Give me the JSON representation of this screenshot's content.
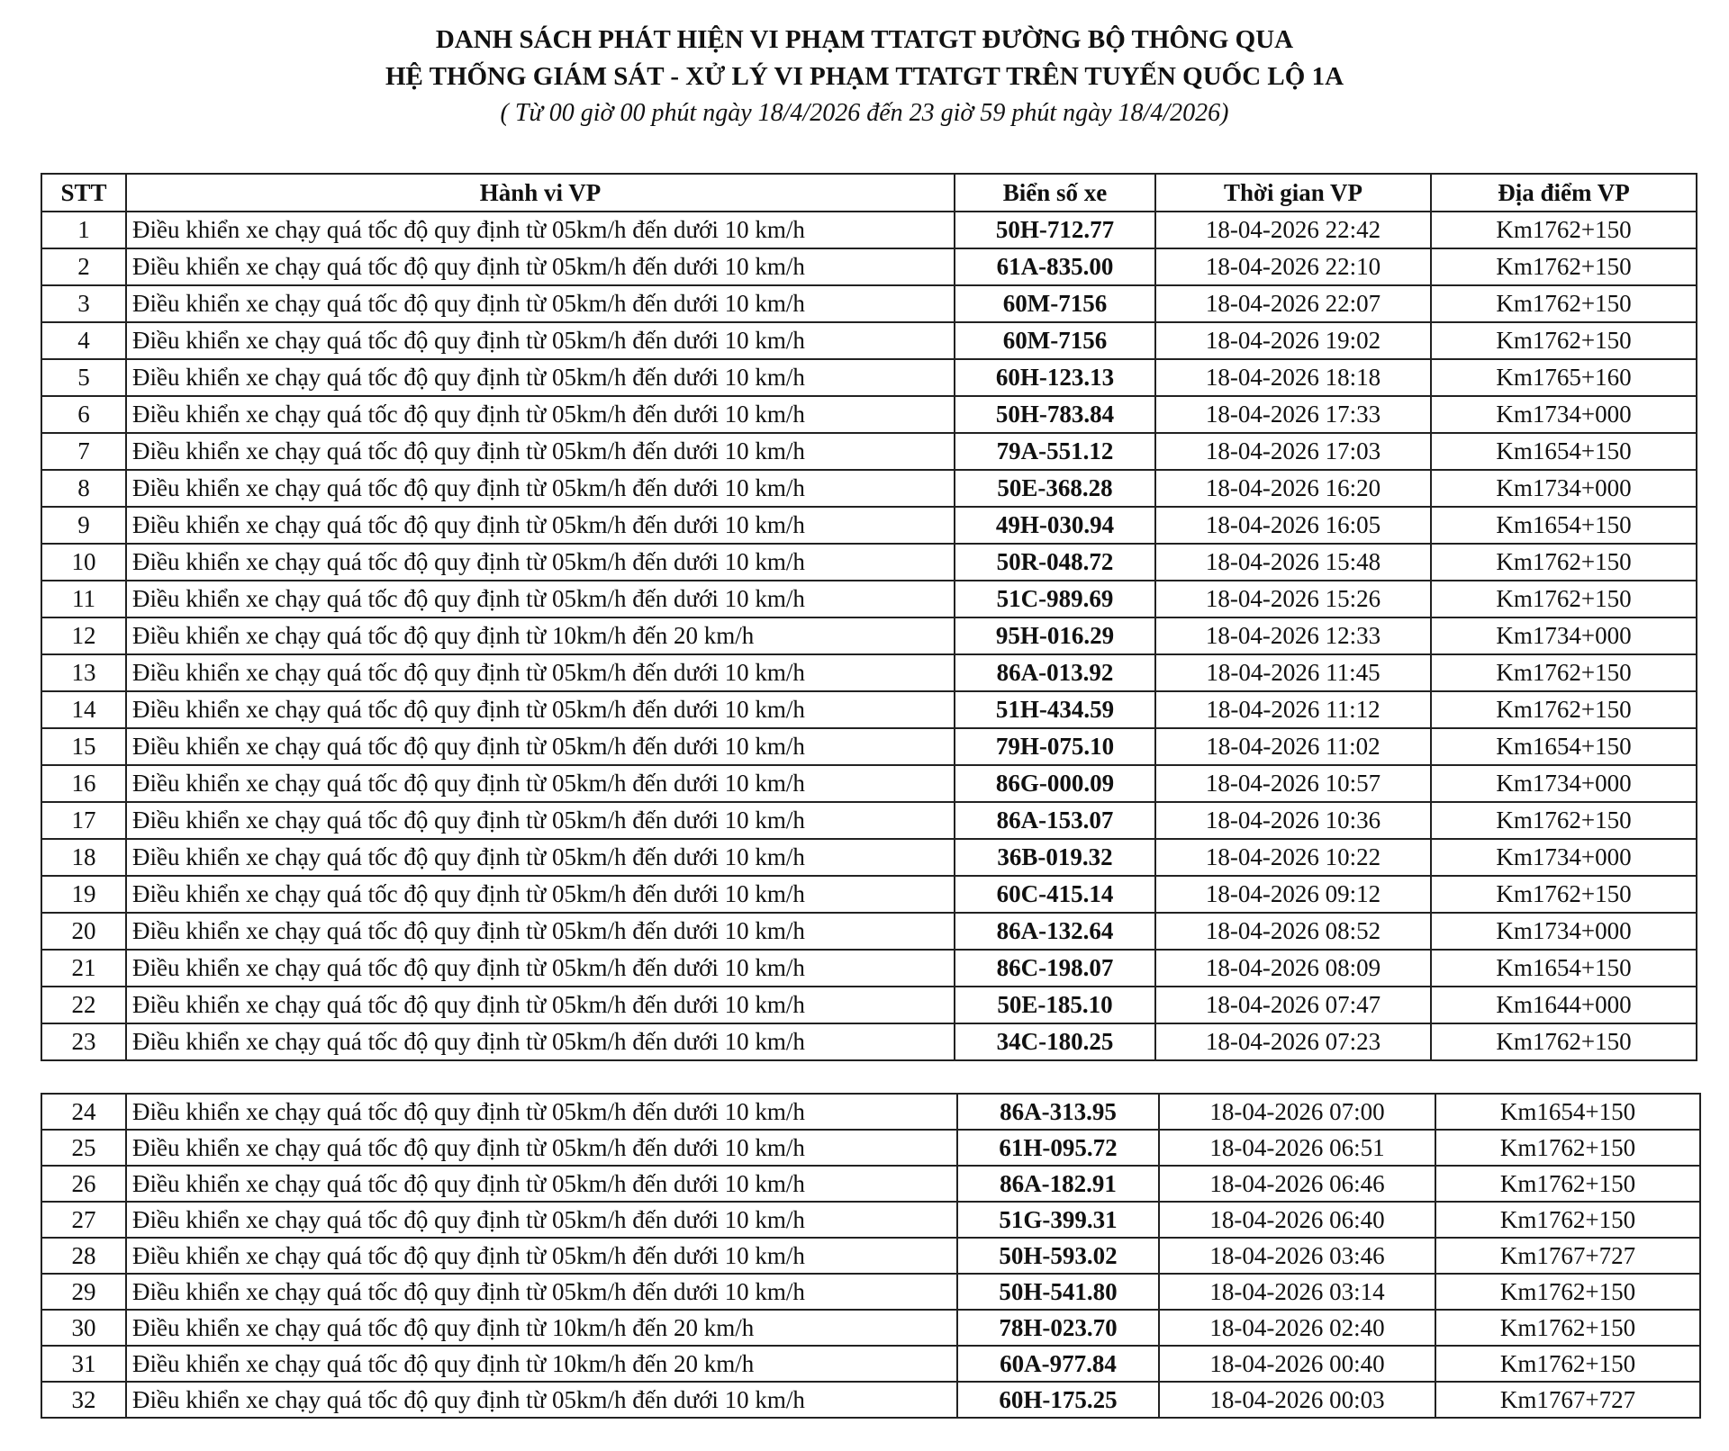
{
  "header": {
    "title_line1": "DANH SÁCH PHÁT HIỆN VI PHẠM TTATGT ĐƯỜNG BỘ THÔNG QUA",
    "title_line2": "HỆ THỐNG GIÁM SÁT - XỬ LÝ VI PHẠM TTATGT TRÊN TUYẾN QUỐC LỘ 1A",
    "subtitle": "( Từ 00 giờ 00 phút ngày 18/4/2026 đến 23 giờ 59 phút ngày 18/4/2026)"
  },
  "columns": [
    "STT",
    "Hành vi VP",
    "Biển số xe",
    "Thời gian VP",
    "Địa điểm VP"
  ],
  "rows": [
    [
      "1",
      "Điều khiển xe chạy quá tốc độ quy định từ 05km/h đến dưới 10 km/h",
      "50H-712.77",
      "18-04-2026 22:42",
      "Km1762+150"
    ],
    [
      "2",
      "Điều khiển xe chạy quá tốc độ quy định từ 05km/h đến dưới 10 km/h",
      "61A-835.00",
      "18-04-2026 22:10",
      "Km1762+150"
    ],
    [
      "3",
      "Điều khiển xe chạy quá tốc độ quy định từ 05km/h đến dưới 10 km/h",
      "60M-7156",
      "18-04-2026 22:07",
      "Km1762+150"
    ],
    [
      "4",
      "Điều khiển xe chạy quá tốc độ quy định từ 05km/h đến dưới 10 km/h",
      "60M-7156",
      "18-04-2026 19:02",
      "Km1762+150"
    ],
    [
      "5",
      "Điều khiển xe chạy quá tốc độ quy định từ 05km/h đến dưới 10 km/h",
      "60H-123.13",
      "18-04-2026 18:18",
      "Km1765+160"
    ],
    [
      "6",
      "Điều khiển xe chạy quá tốc độ quy định từ 05km/h đến dưới 10 km/h",
      "50H-783.84",
      "18-04-2026 17:33",
      "Km1734+000"
    ],
    [
      "7",
      "Điều khiển xe chạy quá tốc độ quy định từ 05km/h đến dưới 10 km/h",
      "79A-551.12",
      "18-04-2026 17:03",
      "Km1654+150"
    ],
    [
      "8",
      "Điều khiển xe chạy quá tốc độ quy định từ 05km/h đến dưới 10 km/h",
      "50E-368.28",
      "18-04-2026 16:20",
      "Km1734+000"
    ],
    [
      "9",
      "Điều khiển xe chạy quá tốc độ quy định từ 05km/h đến dưới 10 km/h",
      "49H-030.94",
      "18-04-2026 16:05",
      "Km1654+150"
    ],
    [
      "10",
      "Điều khiển xe chạy quá tốc độ quy định từ 05km/h đến dưới 10 km/h",
      "50R-048.72",
      "18-04-2026 15:48",
      "Km1762+150"
    ],
    [
      "11",
      "Điều khiển xe chạy quá tốc độ quy định từ 05km/h đến dưới 10 km/h",
      "51C-989.69",
      "18-04-2026 15:26",
      "Km1762+150"
    ],
    [
      "12",
      "Điều khiển xe chạy quá tốc độ quy định từ 10km/h đến 20 km/h",
      "95H-016.29",
      "18-04-2026 12:33",
      "Km1734+000"
    ],
    [
      "13",
      "Điều khiển xe chạy quá tốc độ quy định từ 05km/h đến dưới 10 km/h",
      "86A-013.92",
      "18-04-2026 11:45",
      "Km1762+150"
    ],
    [
      "14",
      "Điều khiển xe chạy quá tốc độ quy định từ 05km/h đến dưới 10 km/h",
      "51H-434.59",
      "18-04-2026 11:12",
      "Km1762+150"
    ],
    [
      "15",
      "Điều khiển xe chạy quá tốc độ quy định từ 05km/h đến dưới 10 km/h",
      "79H-075.10",
      "18-04-2026 11:02",
      "Km1654+150"
    ],
    [
      "16",
      "Điều khiển xe chạy quá tốc độ quy định từ 05km/h đến dưới 10 km/h",
      "86G-000.09",
      "18-04-2026 10:57",
      "Km1734+000"
    ],
    [
      "17",
      "Điều khiển xe chạy quá tốc độ quy định từ 05km/h đến dưới 10 km/h",
      "86A-153.07",
      "18-04-2026 10:36",
      "Km1762+150"
    ],
    [
      "18",
      "Điều khiển xe chạy quá tốc độ quy định từ 05km/h đến dưới 10 km/h",
      "36B-019.32",
      "18-04-2026 10:22",
      "Km1734+000"
    ],
    [
      "19",
      "Điều khiển xe chạy quá tốc độ quy định từ 05km/h đến dưới 10 km/h",
      "60C-415.14",
      "18-04-2026 09:12",
      "Km1762+150"
    ],
    [
      "20",
      "Điều khiển xe chạy quá tốc độ quy định từ 05km/h đến dưới 10 km/h",
      "86A-132.64",
      "18-04-2026 08:52",
      "Km1734+000"
    ],
    [
      "21",
      "Điều khiển xe chạy quá tốc độ quy định từ 05km/h đến dưới 10 km/h",
      "86C-198.07",
      "18-04-2026 08:09",
      "Km1654+150"
    ],
    [
      "22",
      "Điều khiển xe chạy quá tốc độ quy định từ 05km/h đến dưới 10 km/h",
      "50E-185.10",
      "18-04-2026 07:47",
      "Km1644+000"
    ],
    [
      "23",
      "Điều khiển xe chạy quá tốc độ quy định từ 05km/h đến dưới 10 km/h",
      "34C-180.25",
      "18-04-2026 07:23",
      "Km1762+150"
    ]
  ],
  "rows_page2": [
    [
      "24",
      "Điều khiển xe chạy quá tốc độ quy định từ 05km/h đến dưới 10 km/h",
      "86A-313.95",
      "18-04-2026 07:00",
      "Km1654+150"
    ],
    [
      "25",
      "Điều khiển xe chạy quá tốc độ quy định từ 05km/h đến dưới 10 km/h",
      "61H-095.72",
      "18-04-2026 06:51",
      "Km1762+150"
    ],
    [
      "26",
      "Điều khiển xe chạy quá tốc độ quy định từ 05km/h đến dưới 10 km/h",
      "86A-182.91",
      "18-04-2026 06:46",
      "Km1762+150"
    ],
    [
      "27",
      "Điều khiển xe chạy quá tốc độ quy định từ 05km/h đến dưới 10 km/h",
      "51G-399.31",
      "18-04-2026 06:40",
      "Km1762+150"
    ],
    [
      "28",
      "Điều khiển xe chạy quá tốc độ quy định từ 05km/h đến dưới 10 km/h",
      "50H-593.02",
      "18-04-2026 03:46",
      "Km1767+727"
    ],
    [
      "29",
      "Điều khiển xe chạy quá tốc độ quy định từ 05km/h đến dưới 10 km/h",
      "50H-541.80",
      "18-04-2026 03:14",
      "Km1762+150"
    ],
    [
      "30",
      "Điều khiển xe chạy quá tốc độ quy định từ 10km/h đến 20 km/h",
      "78H-023.70",
      "18-04-2026 02:40",
      "Km1762+150"
    ],
    [
      "31",
      "Điều khiển xe chạy quá tốc độ quy định từ 10km/h đến 20 km/h",
      "60A-977.84",
      "18-04-2026 00:40",
      "Km1762+150"
    ],
    [
      "32",
      "Điều khiển xe chạy quá tốc độ quy định từ 05km/h đến dưới 10 km/h",
      "60H-175.25",
      "18-04-2026 00:03",
      "Km1767+727"
    ]
  ]
}
